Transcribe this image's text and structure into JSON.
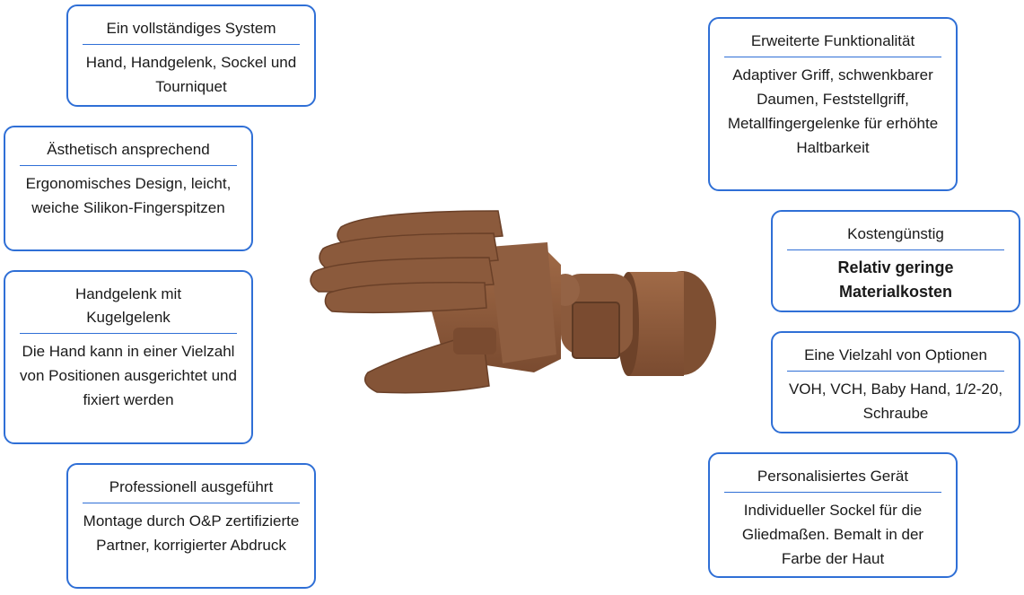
{
  "cards": [
    {
      "title": "Ein vollständiges System",
      "body": "Hand, Handgelenk, Sockel und Tourniquet"
    },
    {
      "title": "Ästhetisch ansprechend",
      "body": "Ergonomisches Design, leicht, weiche Silikon-Fingerspitzen"
    },
    {
      "title": "Handgelenk mit Kugelgelenk",
      "body": "Die Hand kann in einer Vielzahl von Positionen ausgerichtet und fixiert werden"
    },
    {
      "title": "Professionell ausgeführt",
      "body": "Montage durch O&P zertifizierte Partner, korrigierter Abdruck"
    },
    {
      "title": "Erweiterte Funktionalität",
      "body": "Adaptiver Griff, schwenkbarer Daumen, Feststellgriff, Metallfingergelenke für erhöhte Haltbarkeit"
    },
    {
      "title": "Kostengünstig",
      "body": "Relativ geringe Materialkosten"
    },
    {
      "title": "Eine Vielzahl von Optionen",
      "body": "VOH, VCH, Baby Hand, 1/2-20, Schraube"
    },
    {
      "title": "Personalisiertes Gerät",
      "body": "Individueller Sockel für die Gliedmaßen. Bemalt in der Farbe der Haut"
    }
  ],
  "colors": {
    "accent": "#2f6fd6",
    "hand": "#8b5a3c"
  }
}
